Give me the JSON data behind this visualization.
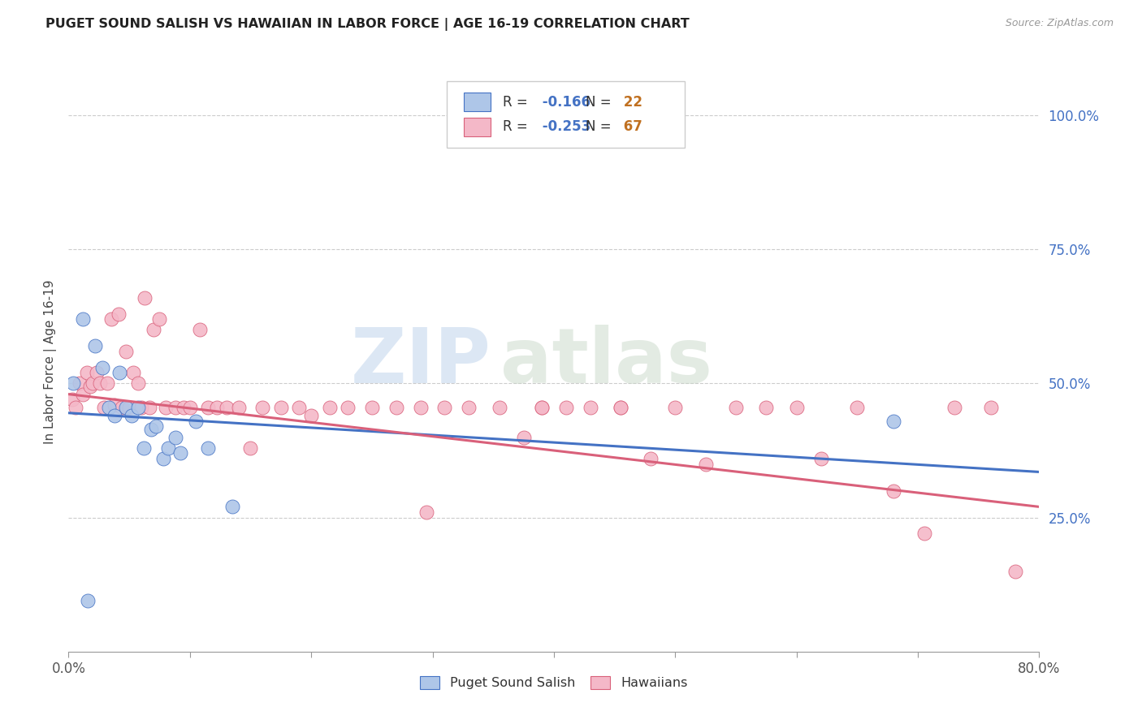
{
  "title": "PUGET SOUND SALISH VS HAWAIIAN IN LABOR FORCE | AGE 16-19 CORRELATION CHART",
  "source": "Source: ZipAtlas.com",
  "ylabel": "In Labor Force | Age 16-19",
  "xlim": [
    0.0,
    0.8
  ],
  "ylim": [
    0.0,
    1.08
  ],
  "yticks": [
    0.25,
    0.5,
    0.75,
    1.0
  ],
  "ytick_labels": [
    "25.0%",
    "50.0%",
    "75.0%",
    "100.0%"
  ],
  "xticks": [
    0.0,
    0.1,
    0.2,
    0.3,
    0.4,
    0.5,
    0.6,
    0.7,
    0.8
  ],
  "blue_R": -0.166,
  "blue_N": 22,
  "pink_R": -0.253,
  "pink_N": 67,
  "blue_color": "#aec6e8",
  "pink_color": "#f4b8c8",
  "blue_line_color": "#4472c4",
  "pink_line_color": "#d9607a",
  "legend_R_color": "#4472c4",
  "legend_N_color": "#c07020",
  "watermark_zip": "ZIP",
  "watermark_atlas": "atlas",
  "blue_scatter_x": [
    0.004,
    0.012,
    0.022,
    0.028,
    0.033,
    0.038,
    0.042,
    0.047,
    0.052,
    0.057,
    0.062,
    0.068,
    0.072,
    0.078,
    0.082,
    0.088,
    0.092,
    0.105,
    0.115,
    0.135,
    0.68,
    0.016
  ],
  "blue_scatter_y": [
    0.5,
    0.62,
    0.57,
    0.53,
    0.455,
    0.44,
    0.52,
    0.455,
    0.44,
    0.455,
    0.38,
    0.415,
    0.42,
    0.36,
    0.38,
    0.4,
    0.37,
    0.43,
    0.38,
    0.27,
    0.43,
    0.095
  ],
  "pink_scatter_x": [
    0.003,
    0.006,
    0.009,
    0.012,
    0.015,
    0.018,
    0.02,
    0.023,
    0.026,
    0.029,
    0.032,
    0.035,
    0.038,
    0.041,
    0.044,
    0.047,
    0.05,
    0.053,
    0.057,
    0.06,
    0.063,
    0.067,
    0.07,
    0.075,
    0.08,
    0.088,
    0.095,
    0.1,
    0.108,
    0.115,
    0.122,
    0.13,
    0.14,
    0.15,
    0.16,
    0.175,
    0.19,
    0.2,
    0.215,
    0.23,
    0.25,
    0.27,
    0.29,
    0.31,
    0.33,
    0.355,
    0.375,
    0.39,
    0.41,
    0.43,
    0.455,
    0.48,
    0.5,
    0.525,
    0.55,
    0.575,
    0.6,
    0.62,
    0.65,
    0.68,
    0.705,
    0.73,
    0.76,
    0.78,
    0.295,
    0.39,
    0.455
  ],
  "pink_scatter_y": [
    0.47,
    0.455,
    0.5,
    0.48,
    0.52,
    0.495,
    0.5,
    0.52,
    0.5,
    0.455,
    0.5,
    0.62,
    0.46,
    0.63,
    0.455,
    0.56,
    0.455,
    0.52,
    0.5,
    0.455,
    0.66,
    0.455,
    0.6,
    0.62,
    0.455,
    0.455,
    0.455,
    0.455,
    0.6,
    0.455,
    0.455,
    0.455,
    0.455,
    0.38,
    0.455,
    0.455,
    0.455,
    0.44,
    0.455,
    0.455,
    0.455,
    0.455,
    0.455,
    0.455,
    0.455,
    0.455,
    0.4,
    0.455,
    0.455,
    0.455,
    0.455,
    0.36,
    0.455,
    0.35,
    0.455,
    0.455,
    0.455,
    0.36,
    0.455,
    0.3,
    0.22,
    0.455,
    0.455,
    0.15,
    0.26,
    0.455,
    0.455
  ],
  "blue_trend": [
    0.445,
    0.335
  ],
  "pink_trend": [
    0.48,
    0.27
  ]
}
